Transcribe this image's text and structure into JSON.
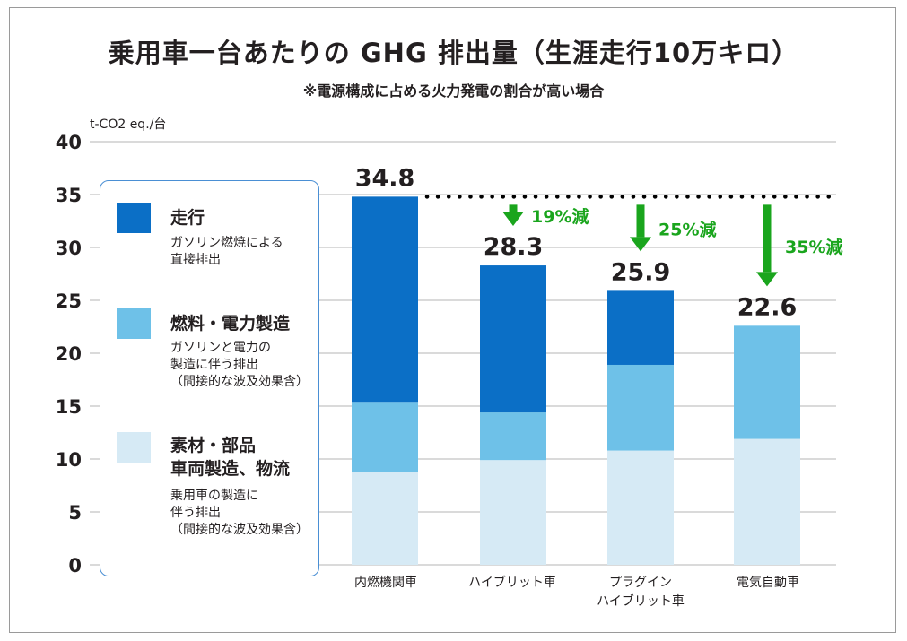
{
  "title": "乗用車一台あたりの GHG 排出量（生涯走行10万キロ）",
  "subtitle": "※電源構成に占める火力発電の割合が高い場合",
  "colors": {
    "driving": "#0b6fc6",
    "fuel_power": "#6ec1e8",
    "materials": "#d6eaf5",
    "reduction": "#1aa51d",
    "text": "#231f20"
  },
  "legend": [
    {
      "key": "driving",
      "title_lines": [
        "走行"
      ],
      "desc_lines": [
        "ガソリン燃焼による",
        "直接排出"
      ]
    },
    {
      "key": "fuel_power",
      "title_lines": [
        "燃料・電力製造"
      ],
      "desc_lines": [
        "ガソリンと電力の",
        "製造に伴う排出",
        "（間接的な波及効果含）"
      ]
    },
    {
      "key": "materials",
      "title_lines": [
        "素材・部品",
        "車両製造、物流"
      ],
      "desc_lines": [
        "乗用車の製造に",
        "伴う排出",
        "（間接的な波及効果含）"
      ]
    }
  ],
  "chart_data": {
    "type": "bar",
    "stacked": true,
    "ylabel": "t-CO2 eq./台",
    "ylim": [
      0,
      40
    ],
    "yticks": [
      0,
      5,
      10,
      15,
      20,
      25,
      30,
      35,
      40
    ],
    "ytick_labels": [
      "0",
      "5",
      "10",
      "15",
      "20",
      "25",
      "30",
      "35",
      "40"
    ],
    "grid": true,
    "categories": [
      {
        "lines": [
          "内燃機関車"
        ]
      },
      {
        "lines": [
          "ハイブリット車"
        ]
      },
      {
        "lines": [
          "プラグイン",
          "ハイブリット車"
        ]
      },
      {
        "lines": [
          "電気自動車"
        ]
      }
    ],
    "series": [
      {
        "name": "素材・部品 車両製造、物流",
        "key": "materials",
        "values": [
          8.8,
          9.9,
          10.8,
          11.9
        ]
      },
      {
        "name": "燃料・電力製造",
        "key": "fuel_power",
        "values": [
          6.6,
          4.5,
          8.1,
          10.7
        ]
      },
      {
        "name": "走行",
        "key": "driving",
        "values": [
          19.4,
          13.9,
          7.0,
          0
        ]
      }
    ],
    "totals": [
      "34.8",
      "28.3",
      "25.9",
      "22.6"
    ],
    "baseline": 34.8,
    "reductions": [
      null,
      "19%減",
      "25%減",
      "35%減"
    ]
  }
}
